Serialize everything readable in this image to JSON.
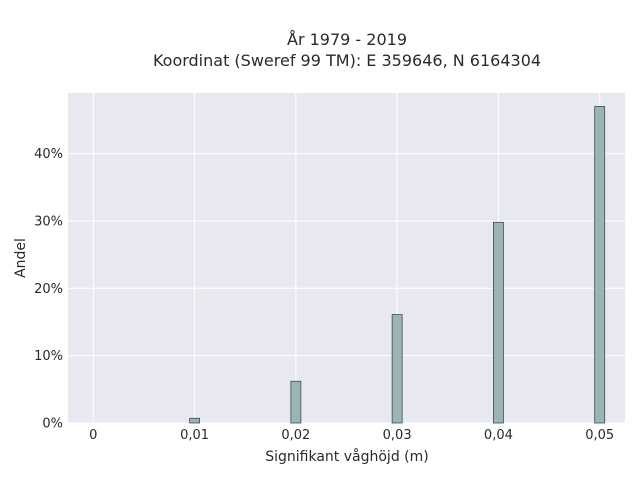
{
  "chart_data": {
    "type": "bar",
    "title": "År 1979 - 2019",
    "subtitle": "Koordinat (Sweref 99 TM): E 359646, N 6164304",
    "xlabel": "Signifikant våghöjd (m)",
    "ylabel": "Andel",
    "x": [
      0.01,
      0.02,
      0.03,
      0.04,
      0.05
    ],
    "values": [
      0.7,
      6.2,
      16.1,
      29.8,
      47.0
    ],
    "x_ticks": [
      "0",
      "0,01",
      "0,02",
      "0,03",
      "0,04",
      "0,05"
    ],
    "y_ticks": [
      "0%",
      "10%",
      "20%",
      "30%",
      "40%"
    ],
    "xlim": [
      -0.0025,
      0.0525
    ],
    "ylim": [
      0,
      49
    ],
    "grid": true,
    "colors": {
      "plot_bg": "#e8e8f0",
      "grid": "#ffffff",
      "bar_fill": "#9bb4b4",
      "bar_stroke": "#3d4f4f"
    }
  }
}
